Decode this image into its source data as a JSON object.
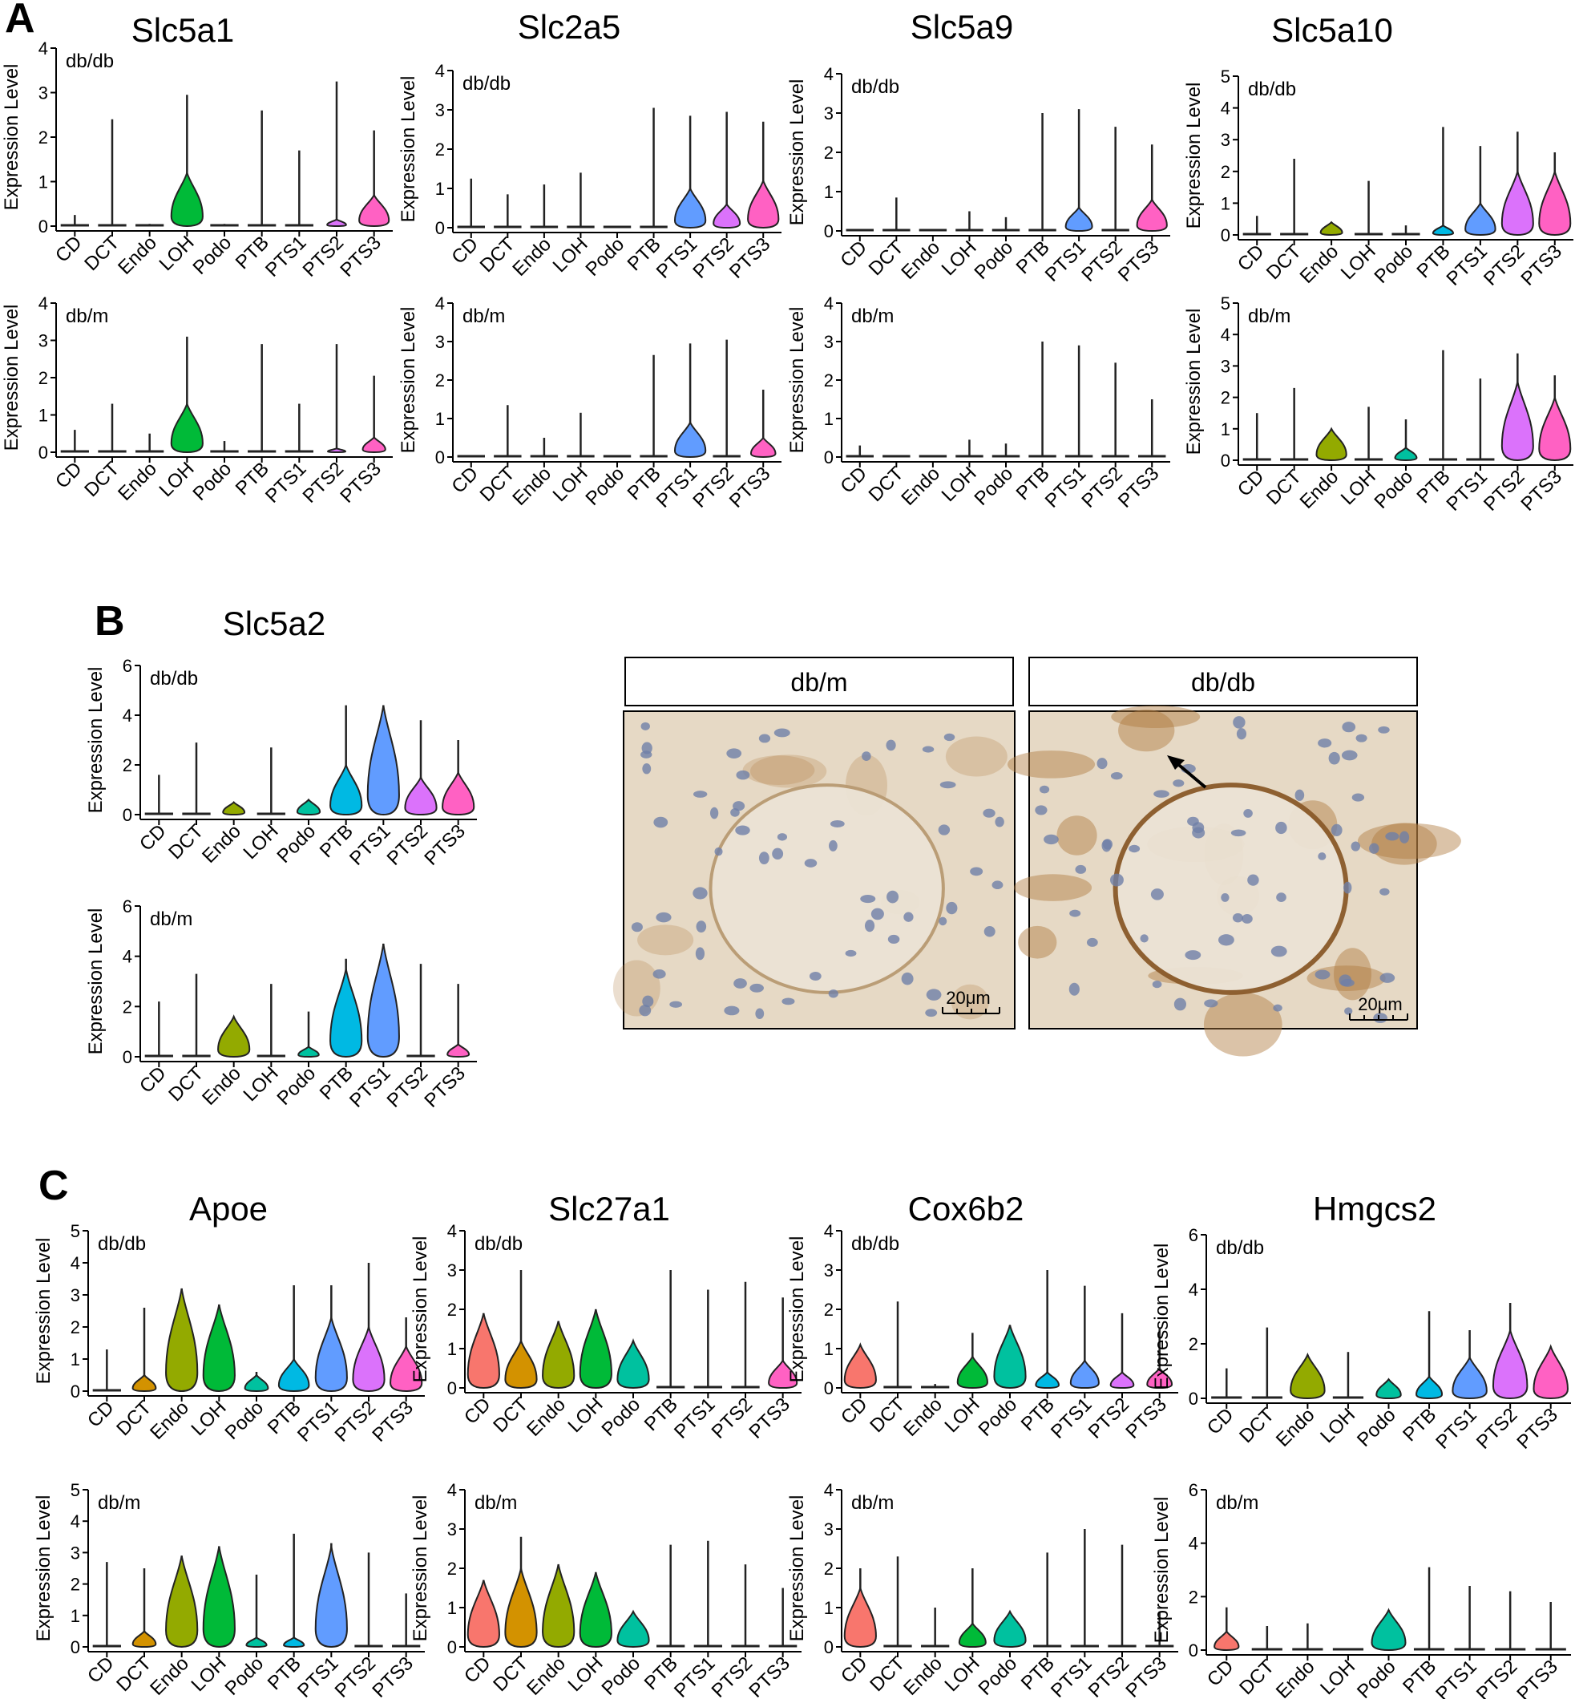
{
  "labels": {
    "panel_a": "A",
    "panel_b": "B",
    "panel_c": "C",
    "ylabel": "Expression Level"
  },
  "categories": [
    "CD",
    "DCT",
    "Endo",
    "LOH",
    "Podo",
    "PTB",
    "PTS1",
    "PTS2",
    "PTS3"
  ],
  "colors": {
    "CD": "#F8766D",
    "DCT": "#D39200",
    "Endo": "#93AA00",
    "LOH": "#00BA38",
    "Podo": "#00C19F",
    "PTB": "#00B9E3",
    "PTS1": "#619CFF",
    "PTS2": "#DB72FB",
    "PTS3": "#FF61C3"
  },
  "micrograph": {
    "left_title": "db/m",
    "right_title": "db/db",
    "scale_label": "20μm",
    "colors": {
      "tissue": "#e6d9c5",
      "stain": "#b07a3e",
      "nuclei": "#6f7fa8"
    }
  },
  "chart_data": [
    {
      "id": "a1",
      "panel": "A",
      "type": "violin",
      "gene": "Slc5a1",
      "condition": "db/db",
      "ylim": [
        0,
        4
      ],
      "yticks": [
        0,
        1,
        2,
        3,
        4
      ],
      "violin_max": [
        0,
        0,
        0,
        1.2,
        0,
        0,
        0,
        0.15,
        0.7
      ],
      "whisker_max": [
        0.25,
        2.4,
        0.05,
        2.95,
        0.05,
        2.6,
        1.7,
        3.25,
        2.15
      ]
    },
    {
      "id": "a2",
      "panel": "A",
      "type": "violin",
      "gene": "Slc5a1",
      "condition": "db/m",
      "ylim": [
        0,
        4
      ],
      "yticks": [
        0,
        1,
        2,
        3,
        4
      ],
      "violin_max": [
        0,
        0,
        0,
        1.3,
        0,
        0,
        0,
        0.1,
        0.4
      ],
      "whisker_max": [
        0.6,
        1.3,
        0.5,
        3.1,
        0.3,
        2.9,
        1.3,
        2.9,
        2.05
      ]
    },
    {
      "id": "a3",
      "panel": "A",
      "gene": "Slc2a5",
      "type": "violin",
      "condition": "db/db",
      "ylim": [
        0,
        4
      ],
      "yticks": [
        0,
        1,
        2,
        3,
        4
      ],
      "violin_max": [
        0,
        0,
        0,
        0,
        0,
        0,
        1.0,
        0.6,
        1.2
      ],
      "whisker_max": [
        1.25,
        0.85,
        1.1,
        1.4,
        0,
        3.05,
        2.85,
        2.95,
        2.7
      ]
    },
    {
      "id": "a4",
      "panel": "A",
      "gene": "Slc2a5",
      "type": "violin",
      "condition": "db/m",
      "ylim": [
        0,
        4
      ],
      "yticks": [
        0,
        1,
        2,
        3,
        4
      ],
      "violin_max": [
        0,
        0,
        0,
        0,
        0,
        0,
        0.9,
        0,
        0.5
      ],
      "whisker_max": [
        0,
        1.35,
        0.5,
        1.15,
        0,
        2.65,
        2.95,
        3.05,
        1.75
      ]
    },
    {
      "id": "a5",
      "panel": "A",
      "gene": "Slc5a9",
      "type": "violin",
      "condition": "db/db",
      "ylim": [
        0,
        4
      ],
      "yticks": [
        0,
        1,
        2,
        3,
        4
      ],
      "violin_max": [
        0,
        0,
        0,
        0,
        0,
        0,
        0.6,
        0,
        0.8
      ],
      "whisker_max": [
        0,
        0.85,
        0,
        0.5,
        0.35,
        3.0,
        3.1,
        2.65,
        2.2
      ]
    },
    {
      "id": "a6",
      "panel": "A",
      "gene": "Slc5a9",
      "type": "violin",
      "condition": "db/m",
      "ylim": [
        0,
        4
      ],
      "yticks": [
        0,
        1,
        2,
        3,
        4
      ],
      "violin_max": [
        0,
        0,
        0,
        0,
        0,
        0,
        0,
        0,
        0
      ],
      "whisker_max": [
        0.3,
        0,
        0,
        0.45,
        0.35,
        3.0,
        2.9,
        2.45,
        1.5
      ]
    },
    {
      "id": "a7",
      "panel": "A",
      "gene": "Slc5a10",
      "type": "violin",
      "condition": "db/db",
      "ylim": [
        0,
        5
      ],
      "yticks": [
        0,
        1,
        2,
        3,
        4,
        5
      ],
      "violin_max": [
        0,
        0,
        0.4,
        0,
        0,
        0.3,
        1.0,
        2.0,
        2.0
      ],
      "whisker_max": [
        0.6,
        2.4,
        0.4,
        1.7,
        0.3,
        3.4,
        2.8,
        3.25,
        2.6
      ]
    },
    {
      "id": "a8",
      "panel": "A",
      "gene": "Slc5a10",
      "type": "violin",
      "condition": "db/m",
      "ylim": [
        0,
        5
      ],
      "yticks": [
        0,
        1,
        2,
        3,
        4,
        5
      ],
      "violin_max": [
        0,
        0,
        1.0,
        0,
        0.4,
        0,
        0,
        2.5,
        2.0
      ],
      "whisker_max": [
        1.5,
        2.3,
        1.0,
        1.7,
        1.3,
        3.5,
        2.6,
        3.4,
        2.7
      ]
    },
    {
      "id": "b1",
      "panel": "B",
      "gene": "Slc5a2",
      "type": "violin",
      "condition": "db/db",
      "ylim": [
        0,
        6
      ],
      "yticks": [
        0,
        2,
        4,
        6
      ],
      "violin_max": [
        0,
        0,
        0.5,
        0,
        0.6,
        2.0,
        4.4,
        1.5,
        1.7
      ],
      "whisker_max": [
        1.6,
        2.9,
        0.5,
        2.7,
        0.6,
        4.4,
        4.4,
        3.8,
        3.0
      ]
    },
    {
      "id": "b2",
      "panel": "B",
      "gene": "Slc5a2",
      "type": "violin",
      "condition": "db/m",
      "ylim": [
        0,
        6
      ],
      "yticks": [
        0,
        2,
        4,
        6
      ],
      "violin_max": [
        0,
        0,
        1.6,
        0,
        0.4,
        3.5,
        4.5,
        0,
        0.5
      ],
      "whisker_max": [
        2.2,
        3.3,
        1.6,
        2.9,
        1.8,
        3.9,
        4.5,
        3.7,
        2.9
      ]
    },
    {
      "id": "c1",
      "panel": "C",
      "gene": "Apoe",
      "type": "violin",
      "condition": "db/db",
      "ylim": [
        0,
        5
      ],
      "yticks": [
        0,
        1,
        2,
        3,
        4,
        5
      ],
      "violin_max": [
        0,
        0.5,
        3.2,
        2.7,
        0.5,
        1.0,
        2.3,
        2.0,
        1.4
      ],
      "whisker_max": [
        1.3,
        2.6,
        3.2,
        2.7,
        0.6,
        3.3,
        3.3,
        4.0,
        2.3
      ]
    },
    {
      "id": "c2",
      "panel": "C",
      "gene": "Apoe",
      "type": "violin",
      "condition": "db/m",
      "ylim": [
        0,
        5
      ],
      "yticks": [
        0,
        1,
        2,
        3,
        4,
        5
      ],
      "violin_max": [
        0,
        0.5,
        2.9,
        3.2,
        0.3,
        0.3,
        3.2,
        0,
        0
      ],
      "whisker_max": [
        2.7,
        2.5,
        2.9,
        3.2,
        2.3,
        3.6,
        3.3,
        3.0,
        1.7
      ]
    },
    {
      "id": "c3",
      "panel": "C",
      "gene": "Slc27a1",
      "type": "violin",
      "condition": "db/db",
      "ylim": [
        0,
        4
      ],
      "yticks": [
        0,
        1,
        2,
        3,
        4
      ],
      "violin_max": [
        1.9,
        1.2,
        1.7,
        2.0,
        1.2,
        0,
        0,
        0,
        0.7
      ],
      "whisker_max": [
        1.9,
        3.0,
        1.7,
        2.0,
        1.2,
        3.0,
        2.5,
        2.7,
        2.3
      ]
    },
    {
      "id": "c4",
      "panel": "C",
      "gene": "Slc27a1",
      "type": "violin",
      "condition": "db/m",
      "ylim": [
        0,
        4
      ],
      "yticks": [
        0,
        1,
        2,
        3,
        4
      ],
      "violin_max": [
        1.7,
        2.0,
        2.1,
        1.9,
        0.9,
        0,
        0,
        0,
        0
      ],
      "whisker_max": [
        1.7,
        2.8,
        2.1,
        1.9,
        0.9,
        2.6,
        2.7,
        2.1,
        1.5
      ]
    },
    {
      "id": "c5",
      "panel": "C",
      "gene": "Cox6b2",
      "type": "violin",
      "condition": "db/db",
      "ylim": [
        0,
        4
      ],
      "yticks": [
        0,
        1,
        2,
        3,
        4
      ],
      "violin_max": [
        1.1,
        0,
        0,
        0.8,
        1.6,
        0.4,
        0.7,
        0.4,
        0.5
      ],
      "whisker_max": [
        1.1,
        2.2,
        0.1,
        1.4,
        1.6,
        3.0,
        2.6,
        1.9,
        1.5
      ]
    },
    {
      "id": "c6",
      "panel": "C",
      "gene": "Cox6b2",
      "type": "violin",
      "condition": "db/m",
      "ylim": [
        0,
        4
      ],
      "yticks": [
        0,
        1,
        2,
        3,
        4
      ],
      "violin_max": [
        1.5,
        0,
        0,
        0.6,
        0.9,
        0,
        0,
        0,
        0
      ],
      "whisker_max": [
        2.0,
        2.3,
        1.0,
        2.0,
        0.9,
        2.4,
        3.0,
        2.6,
        0.9
      ]
    },
    {
      "id": "c7",
      "panel": "C",
      "gene": "Hmgcs2",
      "type": "violin",
      "condition": "db/db",
      "ylim": [
        0,
        6
      ],
      "yticks": [
        0,
        2,
        4,
        6
      ],
      "violin_max": [
        0,
        0,
        1.6,
        0,
        0.7,
        0.8,
        1.5,
        2.5,
        1.9
      ],
      "whisker_max": [
        1.1,
        2.6,
        1.6,
        1.7,
        0.7,
        3.2,
        2.5,
        3.5,
        1.9
      ]
    },
    {
      "id": "c8",
      "panel": "C",
      "gene": "Hmgcs2",
      "type": "violin",
      "condition": "db/m",
      "ylim": [
        0,
        6
      ],
      "yticks": [
        0,
        2,
        4,
        6
      ],
      "violin_max": [
        0.7,
        0,
        0,
        0,
        1.5,
        0,
        0,
        0,
        0
      ],
      "whisker_max": [
        1.6,
        0.9,
        1.0,
        0,
        1.5,
        3.1,
        2.4,
        2.2,
        1.8
      ]
    }
  ]
}
